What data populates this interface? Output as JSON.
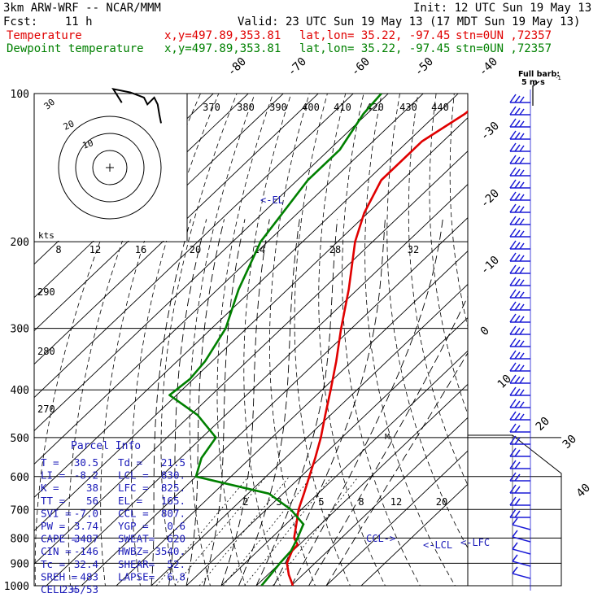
{
  "header": {
    "model": "3km ARW-WRF -- NCAR/MMM",
    "init": "Init: 12 UTC Sun 19 May 13",
    "fcst": "Fcst:    11 h",
    "valid": "Valid: 23 UTC Sun 19 May 13 (17 MDT Sun 19 May 13)",
    "temp_label": "Temperature",
    "dewpt_label": "Dewpoint temperature",
    "loc_xy": "x,y=497.89,353.81",
    "loc_latlon": "lat,lon= 35.22, -97.45",
    "loc_stn": "stn=0UN ,72357"
  },
  "colors": {
    "temperature": "#e00000",
    "dewpoint": "#008000",
    "isotherm": "#000000",
    "dry_adiabat": "#000000",
    "moist_adiabat": "#000000",
    "mixing_ratio": "#000000",
    "wind_barb": "#1a1ad6",
    "parcel_text": "#1a1ab8"
  },
  "labels": {
    "el": "<-EL",
    "ccl": "CCL->",
    "lcl": "<-LCL",
    "lfc": "<-LFC",
    "m": "M",
    "kts": "kts",
    "full_barb_1": "Full barb:",
    "full_barb_2": "5 m s",
    "full_barb_sup": "-1",
    "parcel_title": "Parcel Info"
  },
  "parcel_info": [
    [
      "T  =",
      "30.5",
      "Td =",
      "21.5"
    ],
    [
      "LI =",
      "-8.2",
      "LCL =",
      "830."
    ],
    [
      "K  =",
      "38",
      "LFC =",
      "825."
    ],
    [
      "TT =",
      "56",
      "EL  =",
      "165."
    ],
    [
      "SVI =",
      "-7.0",
      "CCL =",
      "807."
    ],
    [
      "PW =",
      "3.74",
      "YGP =",
      "0.6"
    ],
    [
      "CAPE =",
      "3487",
      "SWEAT=",
      "620"
    ],
    [
      "CIN =",
      "-146",
      "HWBZ=",
      "3540."
    ],
    [
      "Tc =",
      "32.4",
      "SHEAR=",
      "52."
    ],
    [
      "SREH =",
      "483",
      "LAPSE=",
      "6.8"
    ],
    [
      "CELL =",
      "235/53",
      "",
      ""
    ]
  ],
  "hodograph": {
    "ring_labels": [
      "10",
      "20",
      "30"
    ],
    "u_v_kts": [
      [
        7,
        38
      ],
      [
        2,
        46
      ],
      [
        12,
        44
      ],
      [
        20,
        41
      ],
      [
        22,
        37
      ],
      [
        26,
        41
      ],
      [
        28,
        37
      ],
      [
        29,
        31
      ],
      [
        30,
        26
      ]
    ]
  },
  "chart_data": {
    "type": "line",
    "title": "",
    "xlabel": "",
    "ylabel": "",
    "pressure_levels": [
      100,
      200,
      300,
      400,
      500,
      600,
      700,
      800,
      900,
      1000
    ],
    "isotherm_labels": [
      -80,
      -70,
      -60,
      -50,
      -40,
      -30,
      -20,
      -10,
      0,
      10,
      20,
      30,
      40
    ],
    "theta_labels": [
      370,
      380,
      390,
      400,
      410,
      420,
      430,
      440
    ],
    "theta_lower_labels": [
      290,
      280,
      270
    ],
    "mixing_ratio_upper": [
      8,
      12,
      16,
      20,
      24,
      28,
      32
    ],
    "mixing_ratio_lower": [
      2,
      3,
      5,
      8,
      12,
      20
    ],
    "series": [
      {
        "name": "Temperature",
        "points": [
          [
            1000,
            30.5
          ],
          [
            950,
            26
          ],
          [
            900,
            22
          ],
          [
            850,
            19.8
          ],
          [
            825,
            19.5
          ],
          [
            800,
            16.5
          ],
          [
            750,
            13
          ],
          [
            700,
            9.2
          ],
          [
            650,
            6
          ],
          [
            600,
            2.4
          ],
          [
            550,
            -1.5
          ],
          [
            500,
            -6
          ],
          [
            450,
            -11.5
          ],
          [
            400,
            -17.5
          ],
          [
            350,
            -24.5
          ],
          [
            300,
            -33
          ],
          [
            250,
            -42.5
          ],
          [
            200,
            -55
          ],
          [
            175,
            -61
          ],
          [
            150,
            -66
          ],
          [
            125,
            -66
          ],
          [
            110,
            -62
          ],
          [
            100,
            -61
          ]
        ]
      },
      {
        "name": "Dewpoint temperature",
        "points": [
          [
            1000,
            21.5
          ],
          [
            950,
            20.8
          ],
          [
            900,
            20
          ],
          [
            850,
            19.5
          ],
          [
            800,
            17.5
          ],
          [
            750,
            15
          ],
          [
            700,
            7
          ],
          [
            650,
            -4
          ],
          [
            600,
            -30
          ],
          [
            550,
            -34
          ],
          [
            500,
            -36
          ],
          [
            450,
            -48
          ],
          [
            410,
            -62
          ],
          [
            380,
            -61
          ],
          [
            350,
            -62
          ],
          [
            300,
            -66
          ],
          [
            250,
            -74
          ],
          [
            200,
            -82
          ],
          [
            150,
            -87
          ],
          [
            130,
            -87
          ],
          [
            110,
            -91
          ],
          [
            100,
            -92
          ]
        ]
      }
    ]
  }
}
